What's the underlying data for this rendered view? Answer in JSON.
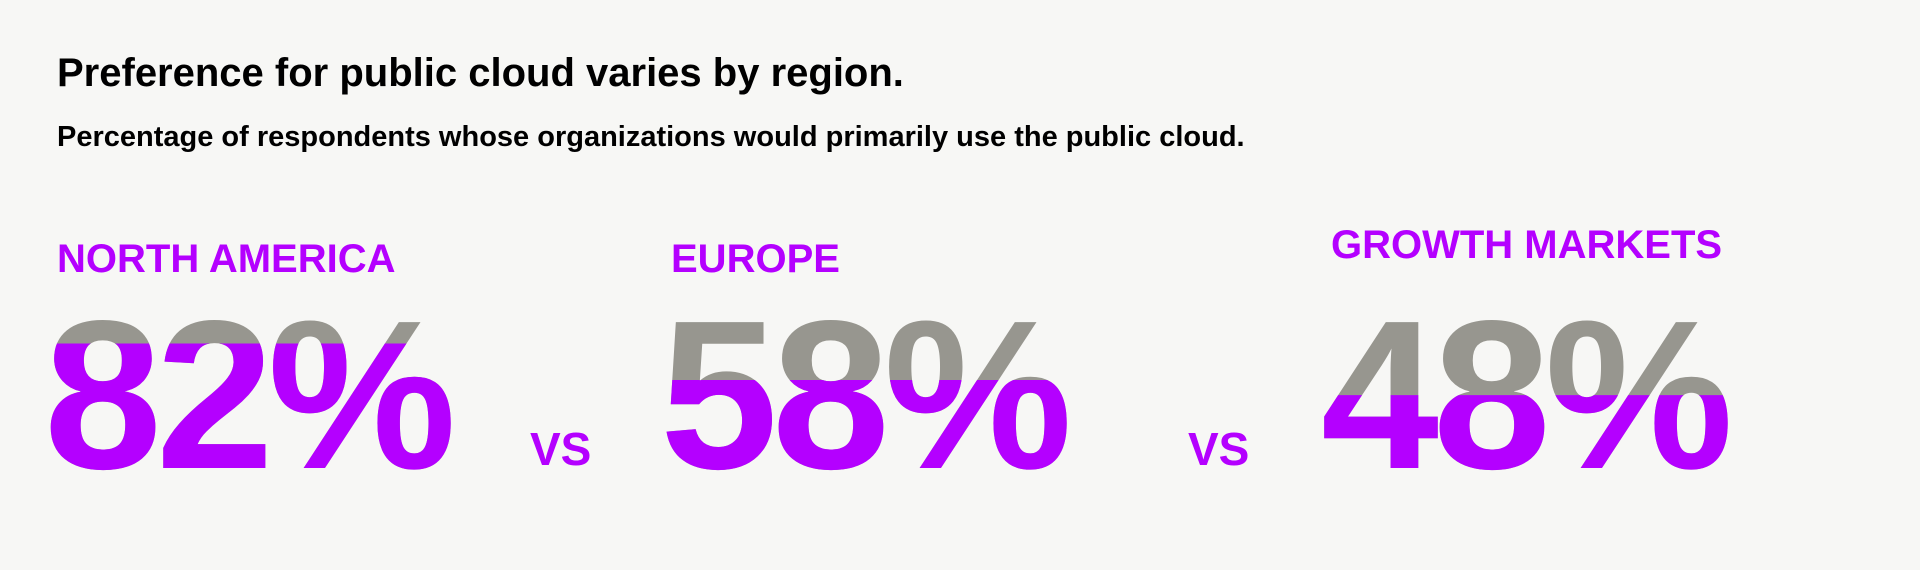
{
  "chart_data": {
    "type": "filled-number",
    "title": "Preference for public cloud varies by region.",
    "subtitle": "Percentage of respondents whose organizations would primarily use the public cloud.",
    "categories": [
      "NORTH AMERICA",
      "EUROPE",
      "GROWTH MARKETS"
    ],
    "values": [
      82,
      58,
      48
    ],
    "value_labels": [
      "82%",
      "58%",
      "48%"
    ],
    "separators": [
      "VS",
      "VS"
    ],
    "ylim": [
      0,
      100
    ],
    "color": "#b400ff",
    "base_color": "#97968f"
  }
}
